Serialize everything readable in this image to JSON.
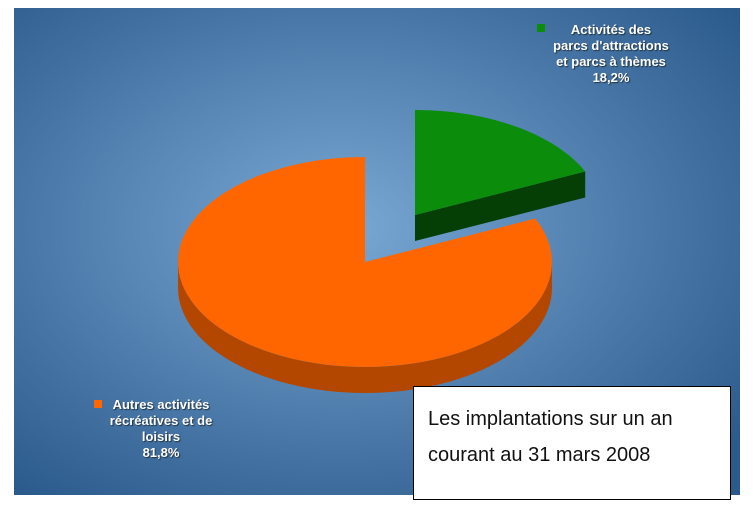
{
  "chart_data": {
    "type": "pie",
    "categories": [
      "Activités des parcs d'attractions et parcs à thèmes",
      "Autres activités récréatives et de loisirs"
    ],
    "values": [
      18.2,
      81.8
    ],
    "value_labels": [
      "18,2%",
      "81,8%"
    ],
    "colors": [
      "#0b8c0b",
      "#ff6600"
    ],
    "annotation": "Les implantations sur un an courant au 31 mars 2008"
  }
}
